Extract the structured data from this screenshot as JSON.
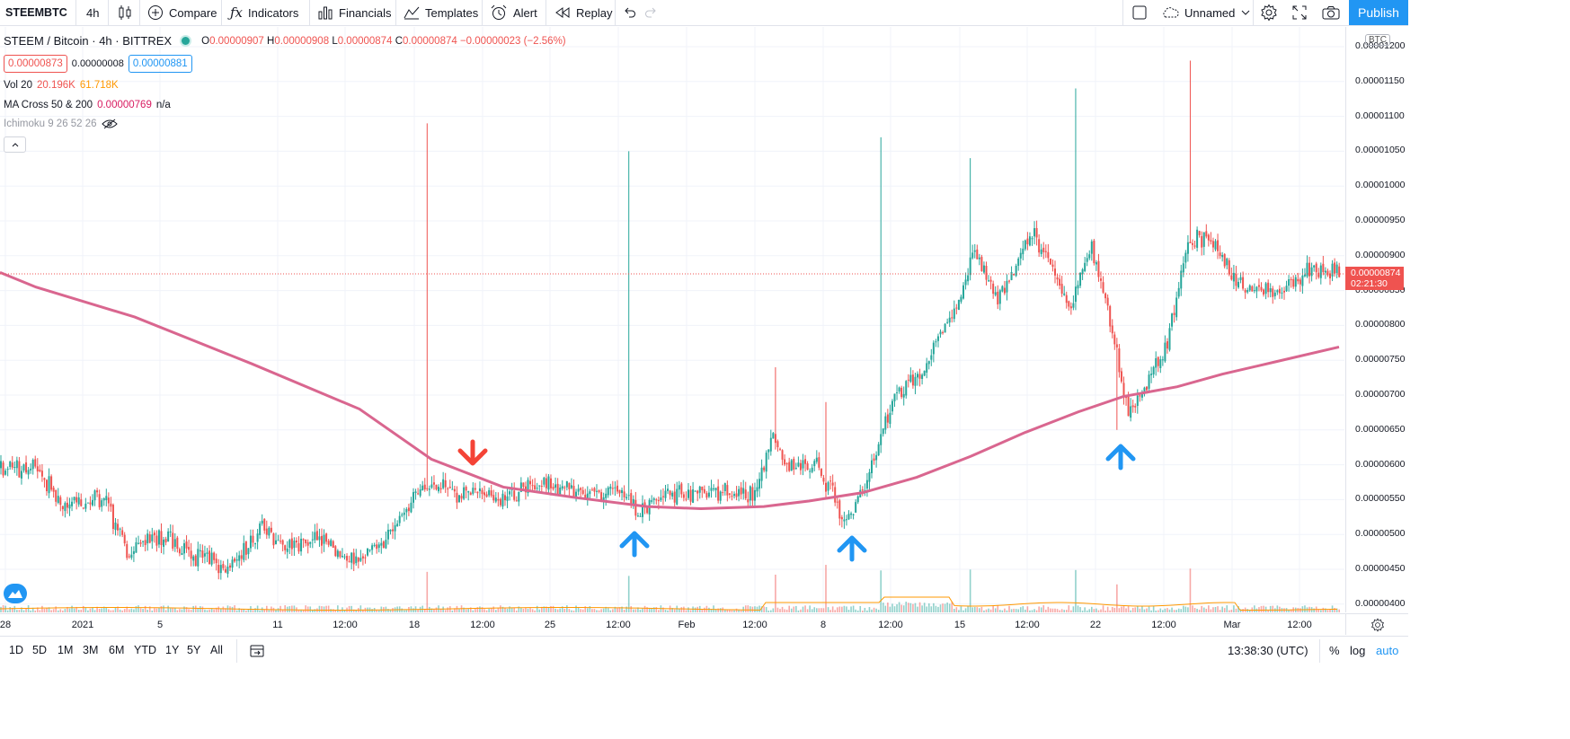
{
  "toolbar": {
    "symbol": "STEEMBTC",
    "interval": "4h",
    "compare": "Compare",
    "indicators": "Indicators",
    "financials": "Financials",
    "templates": "Templates",
    "alert": "Alert",
    "replay": "Replay",
    "layout_name": "Unnamed",
    "publish": "Publish",
    "icons": [
      "candles-icon",
      "plus-circle-icon",
      "fx-icon",
      "bars-icon",
      "templates-icon",
      "alarm-icon",
      "replay-icon",
      "undo-icon",
      "redo-icon",
      "square-icon",
      "cloud-icon",
      "chevron-down-icon",
      "gear-icon",
      "fullscreen-icon",
      "camera-icon"
    ]
  },
  "legend": {
    "title": "STEEM / Bitcoin · 4h · BITTREX",
    "o_label": "O",
    "o": "0.00000907",
    "h_label": "H",
    "h": "0.00000908",
    "l_label": "L",
    "l": "0.00000874",
    "c_label": "C",
    "c": "0.00000874",
    "change": "−0.00000023 (−2.56%)",
    "bid": "0.00000873",
    "spread": "0.00000008",
    "ask": "0.00000881",
    "vol_label": "Vol 20",
    "vol1": "20.196K",
    "vol2": "61.718K",
    "ma_label": "MA Cross 50 & 200",
    "ma1": "0.00000769",
    "ma2": "n/a",
    "ichimoku_label": "Ichimoku 9 26 52 26"
  },
  "price_scale": {
    "currency": "BTC",
    "labels": [
      "0.00001200",
      "0.00001150",
      "0.00001100",
      "0.00001050",
      "0.00001000",
      "0.00000950",
      "0.00000900",
      "0.00000850",
      "0.00000800",
      "0.00000750",
      "0.00000700",
      "0.00000650",
      "0.00000600",
      "0.00000550",
      "0.00000500",
      "0.00000450",
      "0.00000400"
    ],
    "current_price": "0.00000874",
    "countdown": "02:21:30"
  },
  "time_axis": [
    "28",
    "2021",
    "5",
    "11",
    "12:00",
    "18",
    "12:00",
    "25",
    "12:00",
    "Feb",
    "12:00",
    "8",
    "12:00",
    "15",
    "12:00",
    "22",
    "12:00",
    "Mar",
    "12:00"
  ],
  "bottom": {
    "ranges": [
      "1D",
      "5D",
      "1M",
      "3M",
      "6M",
      "YTD",
      "1Y",
      "5Y",
      "All"
    ],
    "time": "13:38:30 (UTC)",
    "percent": "%",
    "log": "log",
    "auto": "auto"
  },
  "colors": {
    "up": "#26a69a",
    "down": "#ef5350",
    "ma200": "#d9668f",
    "volume_ma": "#ff9800",
    "arrow_blue": "#2196f3",
    "arrow_red": "#f44336",
    "accent": "#2196f3"
  },
  "chart_data": {
    "type": "candlestick",
    "symbol": "STEEM / Bitcoin",
    "ylim": [
      3.9e-06,
      1.22e-05
    ],
    "ma_cross_200": [
      [
        0,
        8.76e-06
      ],
      [
        40,
        8.55e-06
      ],
      [
        150,
        8.12e-06
      ],
      [
        280,
        7.45e-06
      ],
      [
        400,
        6.8e-06
      ],
      [
        480,
        6.08e-06
      ],
      [
        560,
        5.68e-06
      ],
      [
        640,
        5.53e-06
      ],
      [
        720,
        5.4e-06
      ],
      [
        780,
        5.37e-06
      ],
      [
        850,
        5.4e-06
      ],
      [
        900,
        5.48e-06
      ],
      [
        960,
        5.6e-06
      ],
      [
        1020,
        5.82e-06
      ],
      [
        1080,
        6.12e-06
      ],
      [
        1140,
        6.46e-06
      ],
      [
        1200,
        6.76e-06
      ],
      [
        1250,
        6.98e-06
      ],
      [
        1310,
        7.12e-06
      ],
      [
        1360,
        7.3e-06
      ],
      [
        1420,
        7.48e-06
      ],
      [
        1490,
        7.69e-06
      ]
    ],
    "anchors": [
      [
        0,
        5.95e-06
      ],
      [
        40,
        5.98e-06
      ],
      [
        70,
        5.38e-06
      ],
      [
        115,
        5.55e-06
      ],
      [
        140,
        4.75e-06
      ],
      [
        180,
        4.98e-06
      ],
      [
        210,
        4.72e-06
      ],
      [
        255,
        4.5e-06
      ],
      [
        290,
        5.1e-06
      ],
      [
        320,
        4.85e-06
      ],
      [
        360,
        4.92e-06
      ],
      [
        395,
        4.62e-06
      ],
      [
        430,
        4.98e-06
      ],
      [
        470,
        5.7e-06
      ],
      [
        510,
        5.6e-06
      ],
      [
        560,
        5.55e-06
      ],
      [
        600,
        5.78e-06
      ],
      [
        640,
        5.6e-06
      ],
      [
        700,
        5.6e-06
      ],
      [
        710,
        5.28e-06
      ],
      [
        740,
        5.58e-06
      ],
      [
        790,
        5.62e-06
      ],
      [
        840,
        5.55e-06
      ],
      [
        860,
        6.4e-06
      ],
      [
        880,
        5.95e-06
      ],
      [
        910,
        6e-06
      ],
      [
        940,
        5.2e-06
      ],
      [
        960,
        5.65e-06
      ],
      [
        980,
        6.4e-06
      ],
      [
        995,
        7e-06
      ],
      [
        1030,
        7.4e-06
      ],
      [
        1065,
        8.35e-06
      ],
      [
        1085,
        9.05e-06
      ],
      [
        1110,
        8.35e-06
      ],
      [
        1150,
        9.35e-06
      ],
      [
        1190,
        8.3e-06
      ],
      [
        1215,
        9.15e-06
      ],
      [
        1240,
        7.8e-06
      ],
      [
        1255,
        6.7e-06
      ],
      [
        1275,
        7.15e-06
      ],
      [
        1300,
        7.8e-06
      ],
      [
        1320,
        9.2e-06
      ],
      [
        1345,
        9.3e-06
      ],
      [
        1375,
        8.6e-06
      ],
      [
        1420,
        8.45e-06
      ],
      [
        1460,
        8.8e-06
      ],
      [
        1490,
        8.74e-06
      ]
    ],
    "signals": [
      {
        "type": "sell",
        "x_index": 526
      },
      {
        "type": "buy",
        "x_index": 706
      },
      {
        "type": "buy",
        "x_index": 948
      },
      {
        "type": "buy",
        "x_index": 1247
      }
    ]
  }
}
